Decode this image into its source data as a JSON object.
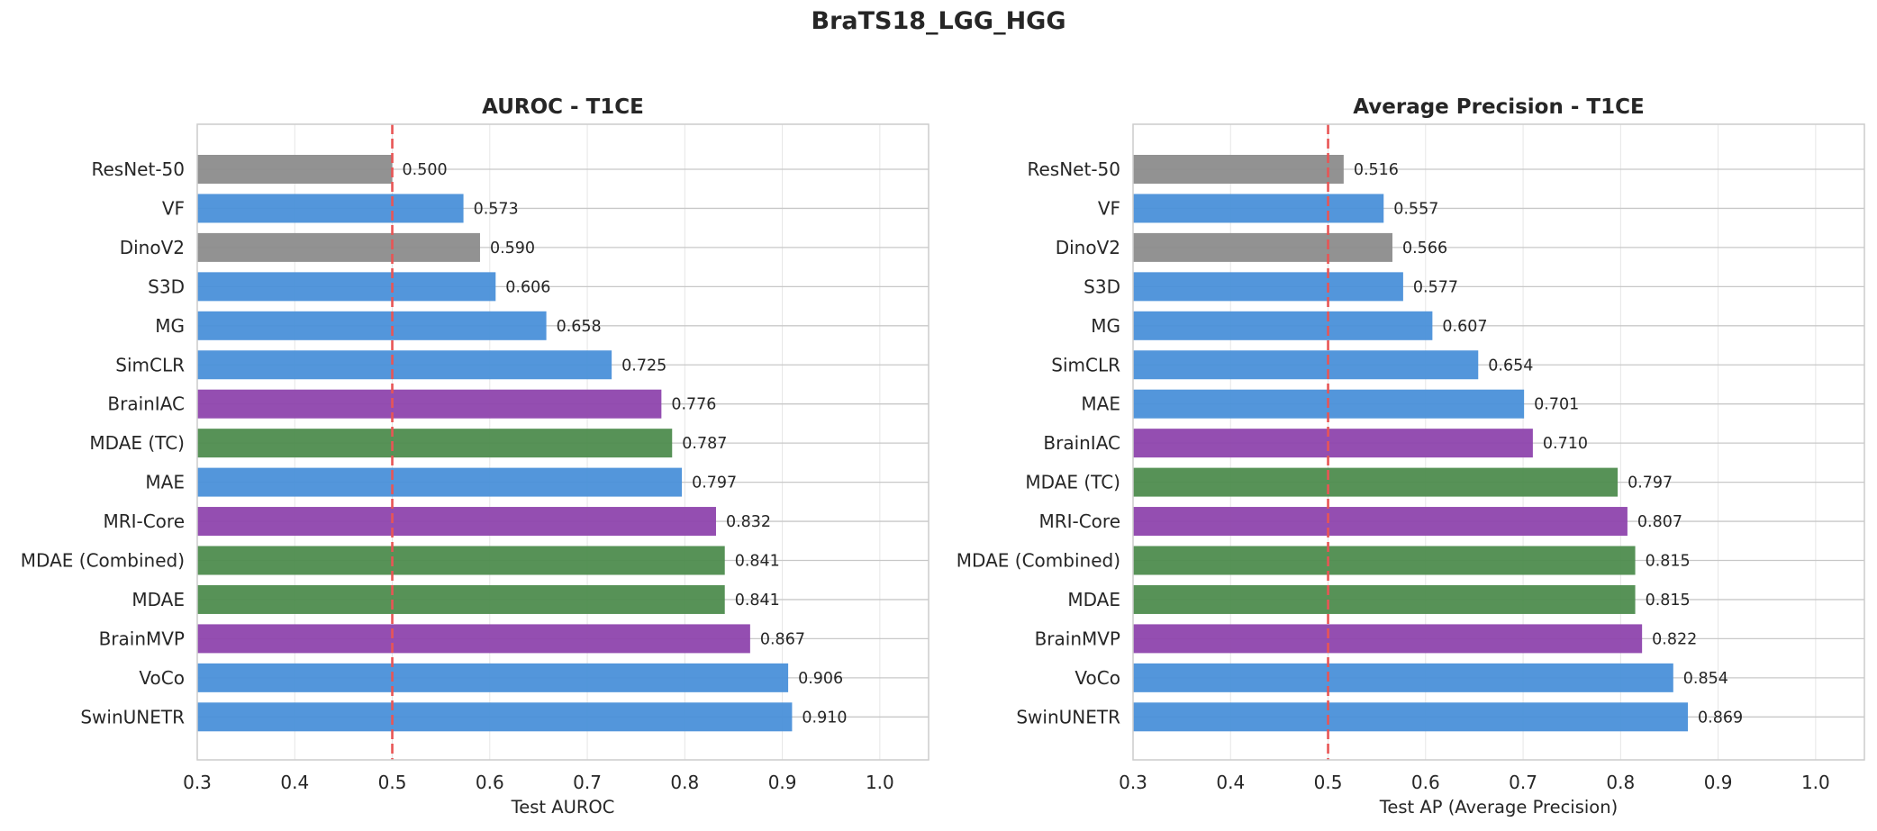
{
  "figure": {
    "suptitle": "BraTS18_LGG_HGG"
  },
  "colors": {
    "blue": "#4a90d9",
    "gray": "#8c8c8c",
    "purple": "#8e44ad",
    "green": "#4e8c4e",
    "reference_line": "#e85555",
    "grid": "#e6e6e6",
    "axes_edge": "#cccccc"
  },
  "chart_data": [
    {
      "type": "bar",
      "orientation": "horizontal",
      "title": "AUROC - T1CE",
      "xlabel": "Test AUROC",
      "ylabel": "",
      "xlim": [
        0.3,
        1.05
      ],
      "xticks": [
        0.3,
        0.4,
        0.5,
        0.6,
        0.7,
        0.8,
        0.9,
        1.0
      ],
      "xtick_labels": [
        "0.3",
        "0.4",
        "0.5",
        "0.6",
        "0.7",
        "0.8",
        "0.9",
        "1.0"
      ],
      "reference_line": 0.5,
      "grid": true,
      "categories": [
        "ResNet-50",
        "VF",
        "DinoV2",
        "S3D",
        "MG",
        "SimCLR",
        "BrainIAC",
        "MDAE (TC)",
        "MAE",
        "MRI-Core",
        "MDAE (Combined)",
        "MDAE",
        "BrainMVP",
        "VoCo",
        "SwinUNETR"
      ],
      "values": [
        0.5,
        0.573,
        0.59,
        0.606,
        0.658,
        0.725,
        0.776,
        0.787,
        0.797,
        0.832,
        0.841,
        0.841,
        0.867,
        0.906,
        0.91
      ],
      "value_labels": [
        "0.500",
        "0.573",
        "0.590",
        "0.606",
        "0.658",
        "0.725",
        "0.776",
        "0.787",
        "0.797",
        "0.832",
        "0.841",
        "0.841",
        "0.867",
        "0.906",
        "0.910"
      ],
      "bar_colors": [
        "gray",
        "blue",
        "gray",
        "blue",
        "blue",
        "blue",
        "purple",
        "green",
        "blue",
        "purple",
        "green",
        "green",
        "purple",
        "blue",
        "blue"
      ]
    },
    {
      "type": "bar",
      "orientation": "horizontal",
      "title": "Average Precision - T1CE",
      "xlabel": "Test AP (Average Precision)",
      "ylabel": "",
      "xlim": [
        0.3,
        1.05
      ],
      "xticks": [
        0.3,
        0.4,
        0.5,
        0.6,
        0.7,
        0.8,
        0.9,
        1.0
      ],
      "xtick_labels": [
        "0.3",
        "0.4",
        "0.5",
        "0.6",
        "0.7",
        "0.8",
        "0.9",
        "1.0"
      ],
      "reference_line": 0.5,
      "grid": true,
      "categories": [
        "ResNet-50",
        "VF",
        "DinoV2",
        "S3D",
        "MG",
        "SimCLR",
        "MAE",
        "BrainIAC",
        "MDAE (TC)",
        "MRI-Core",
        "MDAE (Combined)",
        "MDAE",
        "BrainMVP",
        "VoCo",
        "SwinUNETR"
      ],
      "values": [
        0.516,
        0.557,
        0.566,
        0.577,
        0.607,
        0.654,
        0.701,
        0.71,
        0.797,
        0.807,
        0.815,
        0.815,
        0.822,
        0.854,
        0.869
      ],
      "value_labels": [
        "0.516",
        "0.557",
        "0.566",
        "0.577",
        "0.607",
        "0.654",
        "0.701",
        "0.710",
        "0.797",
        "0.807",
        "0.815",
        "0.815",
        "0.822",
        "0.854",
        "0.869"
      ],
      "bar_colors": [
        "gray",
        "blue",
        "gray",
        "blue",
        "blue",
        "blue",
        "blue",
        "purple",
        "green",
        "purple",
        "green",
        "green",
        "purple",
        "blue",
        "blue"
      ]
    }
  ]
}
